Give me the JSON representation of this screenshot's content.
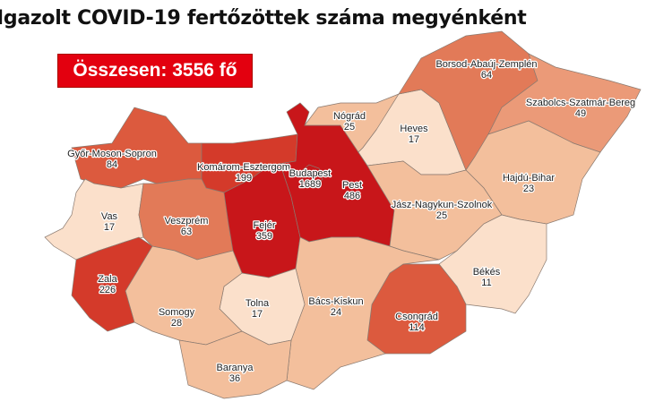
{
  "title": "Igazolt COVID-19 fertőzöttek száma megyénként",
  "total": "Összesen: 3556 fő",
  "colors": {
    "darkest": "#c8161a",
    "dark": "#d43a2a",
    "mid_dark": "#dc5a3e",
    "mid": "#e27a58",
    "mid_light": "#eb9a78",
    "light": "#f3bf9c",
    "lightest": "#fbe0cb"
  },
  "counties": [
    {
      "name": "Győr-Moson-Sopron",
      "value": "84"
    },
    {
      "name": "Komárom-Esztergom",
      "value": "199"
    },
    {
      "name": "Vas",
      "value": "17"
    },
    {
      "name": "Veszprém",
      "value": "63"
    },
    {
      "name": "Fejér",
      "value": "359"
    },
    {
      "name": "Pest",
      "value": "486"
    },
    {
      "name": "Budapest",
      "value": "1689"
    },
    {
      "name": "Nógrád",
      "value": "25"
    },
    {
      "name": "Heves",
      "value": "17"
    },
    {
      "name": "Borsod-Abaúj-Zemplén",
      "value": "64"
    },
    {
      "name": "Szabolcs-Szatmár-Bereg",
      "value": "49"
    },
    {
      "name": "Hajdú-Bihar",
      "value": "23"
    },
    {
      "name": "Jász-Nagykun-Szolnok",
      "value": "25"
    },
    {
      "name": "Békés",
      "value": "11"
    },
    {
      "name": "Csongrád",
      "value": "114"
    },
    {
      "name": "Bács-Kiskun",
      "value": "24"
    },
    {
      "name": "Tolna",
      "value": "17"
    },
    {
      "name": "Somogy",
      "value": "28"
    },
    {
      "name": "Zala",
      "value": "226"
    },
    {
      "name": "Baranya",
      "value": "36"
    }
  ]
}
